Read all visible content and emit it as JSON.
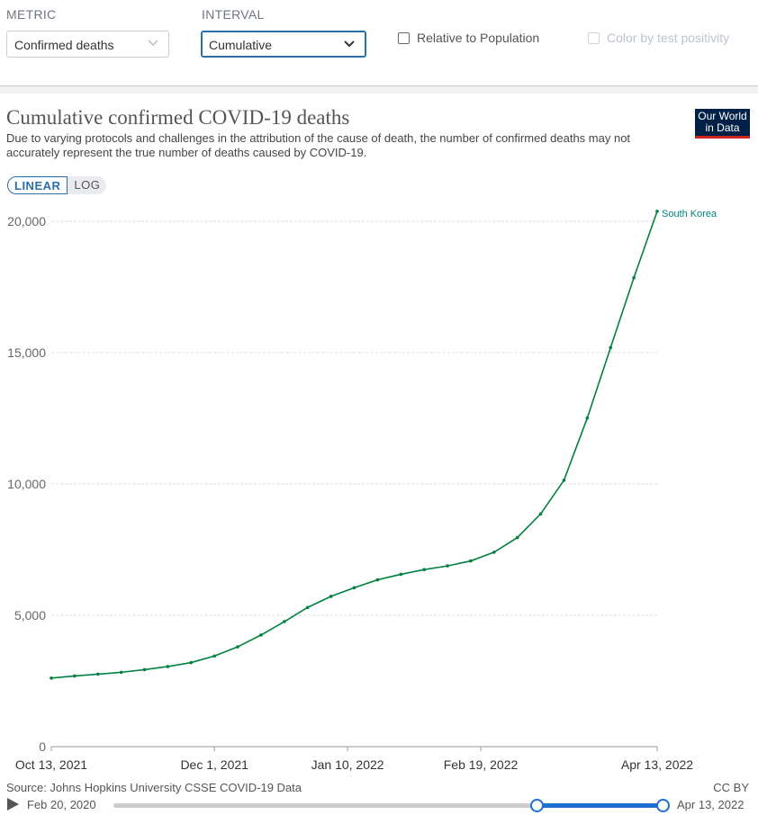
{
  "controls": {
    "metric_label": "METRIC",
    "metric_value": "Confirmed deaths",
    "interval_label": "INTERVAL",
    "interval_value": "Cumulative",
    "relative_label": "Relative to Population",
    "relative_checked": false,
    "color_label": "Color by test positivity",
    "color_checked": false
  },
  "header": {
    "title": "Cumulative confirmed COVID-19 deaths",
    "subtitle": "Due to varying protocols and challenges in the attribution of the cause of death, the number of confirmed deaths may not accurately represent the true number of deaths caused by COVID-19.",
    "logo": "Our World in Data",
    "scale_linear": "LINEAR",
    "scale_log": "LOG",
    "scale_selected": "LINEAR"
  },
  "chart_data": {
    "type": "line",
    "title": "Cumulative confirmed COVID-19 deaths",
    "xlabel": "",
    "ylabel": "",
    "ylim": [
      0,
      20000
    ],
    "yticks": [
      0,
      5000,
      10000,
      15000,
      20000
    ],
    "ytick_labels": [
      "0",
      "5,000",
      "10,000",
      "15,000",
      "20,000"
    ],
    "xlim": [
      "2021-10-13",
      "2022-04-13"
    ],
    "xticks": [
      "2021-10-13",
      "2021-12-01",
      "2022-01-10",
      "2022-02-19",
      "2022-04-13"
    ],
    "xtick_labels": [
      "Oct 13, 2021",
      "Dec 1, 2021",
      "Jan 10, 2022",
      "Feb 19, 2022",
      "Apr 13, 2022"
    ],
    "grid": "horizontal",
    "series": [
      {
        "name": "South Korea",
        "color": "#00813f",
        "points": [
          [
            "2021-10-13",
            2610
          ],
          [
            "2021-10-20",
            2690
          ],
          [
            "2021-10-27",
            2760
          ],
          [
            "2021-11-03",
            2830
          ],
          [
            "2021-11-10",
            2930
          ],
          [
            "2021-11-17",
            3050
          ],
          [
            "2021-11-24",
            3200
          ],
          [
            "2021-12-01",
            3450
          ],
          [
            "2021-12-08",
            3800
          ],
          [
            "2021-12-15",
            4250
          ],
          [
            "2021-12-22",
            4760
          ],
          [
            "2021-12-29",
            5300
          ],
          [
            "2022-01-05",
            5720
          ],
          [
            "2022-01-12",
            6050
          ],
          [
            "2022-01-19",
            6350
          ],
          [
            "2022-01-26",
            6560
          ],
          [
            "2022-02-02",
            6740
          ],
          [
            "2022-02-09",
            6880
          ],
          [
            "2022-02-16",
            7070
          ],
          [
            "2022-02-23",
            7400
          ],
          [
            "2022-03-02",
            7960
          ],
          [
            "2022-03-09",
            8860
          ],
          [
            "2022-03-16",
            10140
          ],
          [
            "2022-03-23",
            12510
          ],
          [
            "2022-03-30",
            15190
          ],
          [
            "2022-04-06",
            17850
          ],
          [
            "2022-04-13",
            20380
          ]
        ]
      }
    ]
  },
  "footer": {
    "source": "Source: Johns Hopkins University CSSE COVID-19 Data",
    "license": "CC BY",
    "timeline_start": "Feb 20, 2020",
    "timeline_end": "Apr 13, 2022",
    "range_start_fraction": 0.77,
    "range_end_fraction": 1.0
  }
}
